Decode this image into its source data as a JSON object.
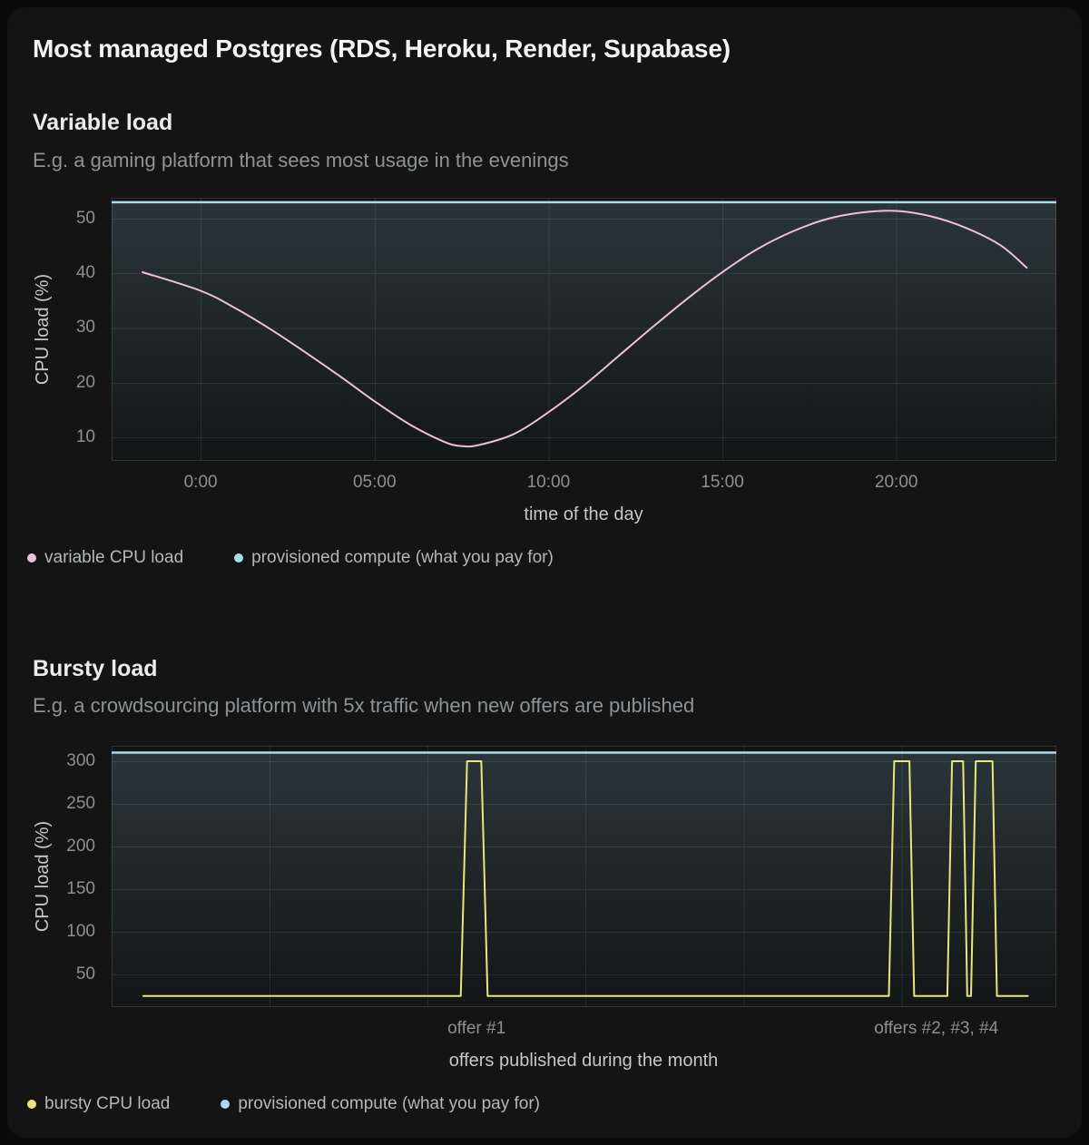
{
  "page": {
    "title": "Most managed Postgres (RDS, Heroku, Render, Supabase)"
  },
  "colors": {
    "card_background": "#141414",
    "plot_background": "#111313",
    "grid": "rgba(255,255,255,0.08)",
    "tick_text": "#8b9191",
    "axis_title_text": "#c3c8c8",
    "variable_line": "#eac1d8",
    "bursty_line": "#e7e77b",
    "provisioned_line": "#a9dcec"
  },
  "chart_data": [
    {
      "type": "line",
      "title": "Variable load",
      "subtitle": "E.g. a gaming platform that sees most usage in the evenings",
      "xlabel": "time of the day",
      "ylabel": "CPU load (%)",
      "x_domain": [
        -2.56,
        24.6
      ],
      "y_domain": [
        5.7,
        53.8
      ],
      "y_ticks": [
        10,
        20,
        30,
        40,
        50
      ],
      "x_grid": [
        0,
        5,
        10,
        15,
        20
      ],
      "x_ticks": [
        {
          "value": 0,
          "label": "0:00"
        },
        {
          "value": 5,
          "label": "05:00"
        },
        {
          "value": 10,
          "label": "10:00"
        },
        {
          "value": 15,
          "label": "15:00"
        },
        {
          "value": 20,
          "label": "20:00"
        }
      ],
      "grid": true,
      "legend_position": "bottom-left",
      "provisioned_level": 53,
      "series": [
        {
          "name": "variable CPU load",
          "color": "#eac1d8",
          "smooth": true,
          "area": false,
          "points": [
            [
              -1.67,
              40.2
            ],
            [
              0,
              36.8
            ],
            [
              1,
              33.6
            ],
            [
              2,
              29.8
            ],
            [
              3,
              25.6
            ],
            [
              4,
              21.2
            ],
            [
              5,
              16.6
            ],
            [
              6,
              12.4
            ],
            [
              7,
              9.2
            ],
            [
              7.5,
              8.4
            ],
            [
              8,
              8.6
            ],
            [
              9,
              10.6
            ],
            [
              10,
              14.6
            ],
            [
              11,
              19.4
            ],
            [
              12,
              24.8
            ],
            [
              13,
              30.2
            ],
            [
              14,
              35.4
            ],
            [
              15,
              40.2
            ],
            [
              16,
              44.4
            ],
            [
              17,
              47.6
            ],
            [
              18,
              49.9
            ],
            [
              19,
              51.1
            ],
            [
              20,
              51.4
            ],
            [
              21,
              50.4
            ],
            [
              22,
              48.3
            ],
            [
              23,
              45.1
            ],
            [
              23.75,
              41
            ]
          ]
        },
        {
          "name": "provisioned compute (what you pay for)",
          "color": "#a9dcec",
          "smooth": false,
          "area": true,
          "points": [
            [
              -2.56,
              53
            ],
            [
              24.6,
              53
            ]
          ]
        }
      ]
    },
    {
      "type": "line",
      "title": "Bursty load",
      "subtitle": "E.g. a crowdsourcing platform with 5x traffic when new offers are published",
      "xlabel": "offers published during the month",
      "ylabel": "CPU load (%)",
      "x_domain": [
        0,
        29.9
      ],
      "y_domain": [
        12,
        318
      ],
      "y_ticks": [
        50,
        100,
        150,
        200,
        250,
        300
      ],
      "x_grid": [
        5,
        10,
        15,
        20,
        25
      ],
      "x_ticks": [
        {
          "value": 11.55,
          "label": "offer #1"
        },
        {
          "value": 26.1,
          "label": "offers #2, #3, #4"
        }
      ],
      "grid": true,
      "legend_position": "bottom-left",
      "provisioned_level": 310,
      "series": [
        {
          "name": "bursty CPU load",
          "color": "#e7e77b",
          "smooth": false,
          "area": false,
          "points": [
            [
              1,
              25
            ],
            [
              11.05,
              25
            ],
            [
              11.25,
              300
            ],
            [
              11.7,
              300
            ],
            [
              11.9,
              25
            ],
            [
              24.6,
              25
            ],
            [
              24.77,
              300
            ],
            [
              25.25,
              300
            ],
            [
              25.4,
              25
            ],
            [
              26.45,
              25
            ],
            [
              26.6,
              300
            ],
            [
              26.95,
              300
            ],
            [
              27.08,
              25
            ],
            [
              27.2,
              25
            ],
            [
              27.35,
              300
            ],
            [
              27.88,
              300
            ],
            [
              28.02,
              25
            ],
            [
              29,
              25
            ]
          ]
        },
        {
          "name": "provisioned compute (what you pay for)",
          "color": "#a9dcec",
          "smooth": false,
          "area": true,
          "points": [
            [
              0,
              310
            ],
            [
              29.9,
              310
            ]
          ]
        }
      ]
    }
  ]
}
